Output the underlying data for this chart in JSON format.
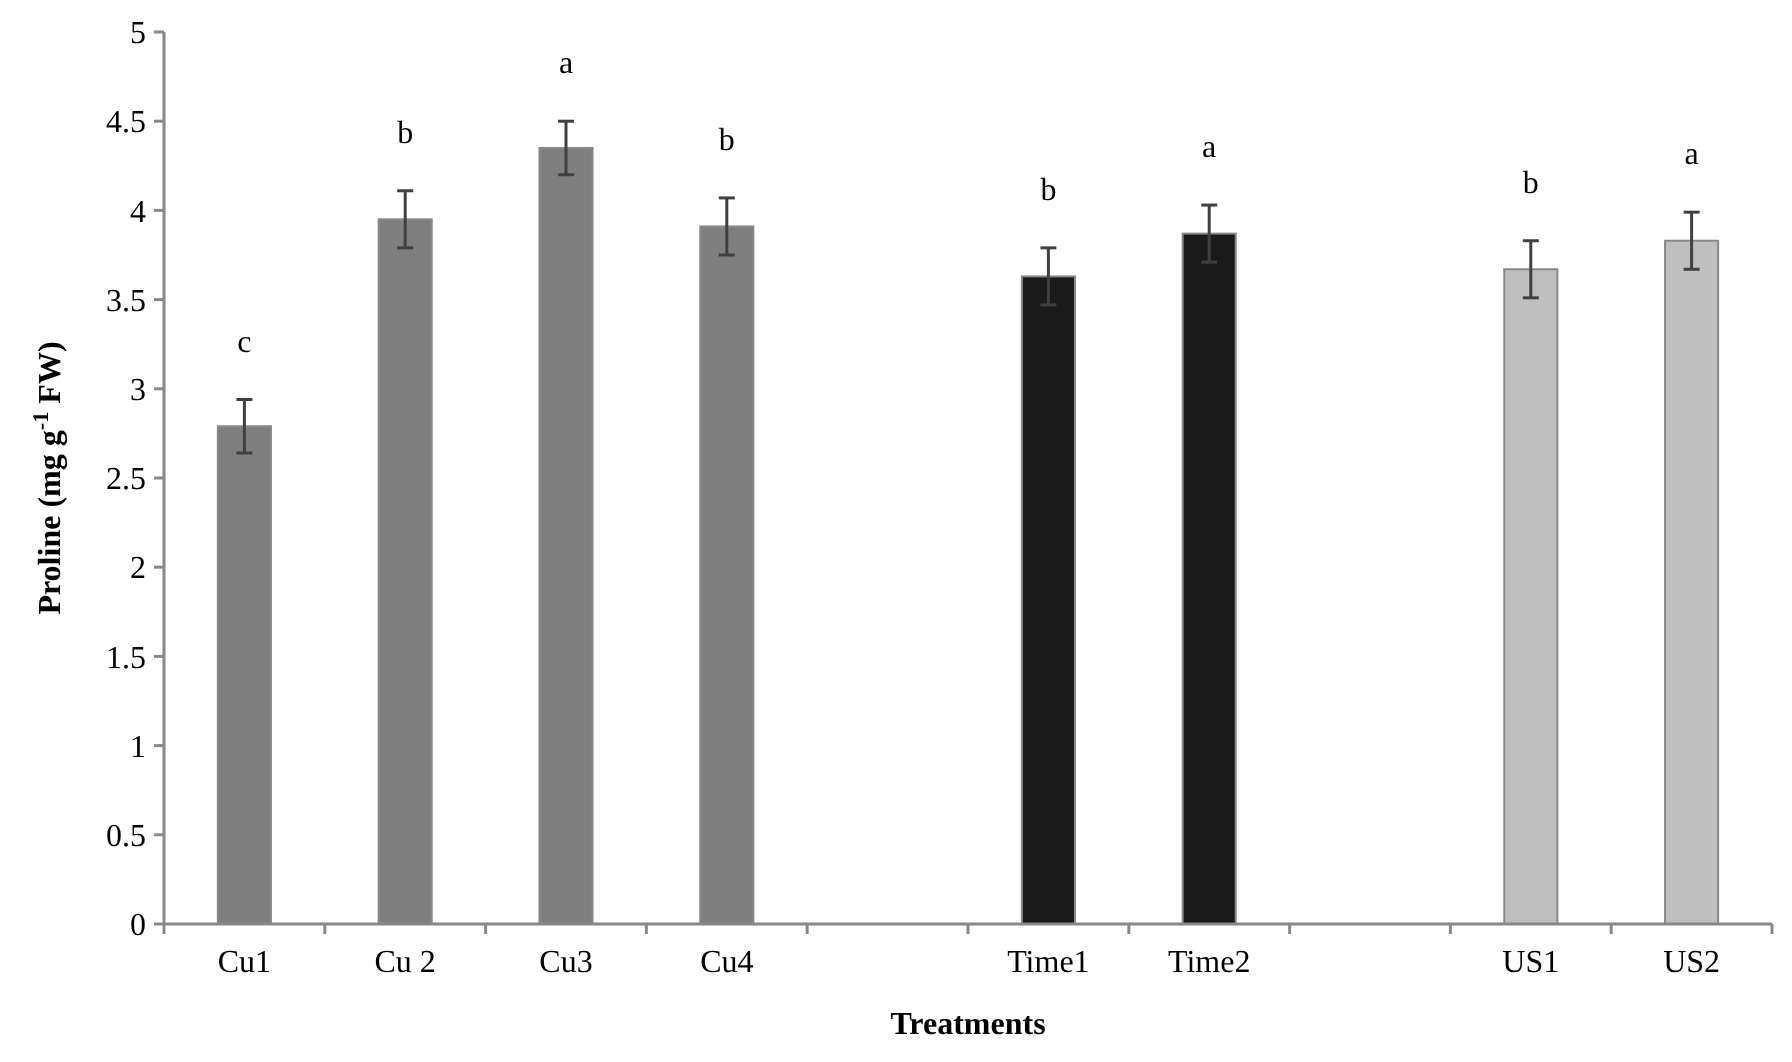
{
  "chart_data": {
    "type": "bar",
    "xlabel": "Treatments",
    "ylabel": "Proline (mg g$^{-1}$ FW)",
    "categories": [
      "Cu1",
      "Cu 2",
      "Cu3",
      "Cu4",
      null,
      "Time1",
      "Time2",
      null,
      "US1",
      "US2"
    ],
    "values": [
      2.79,
      3.95,
      4.35,
      3.91,
      null,
      3.63,
      3.87,
      null,
      3.67,
      3.83
    ],
    "errors": [
      0.15,
      0.16,
      0.15,
      0.16,
      null,
      0.16,
      0.16,
      null,
      0.16,
      0.16
    ],
    "colors": [
      "#7f7f7f",
      "#7f7f7f",
      "#7f7f7f",
      "#7f7f7f",
      null,
      "#1a1a1a",
      "#1a1a1a",
      null,
      "#bfbfbf",
      "#bfbfbf"
    ],
    "ylim": [
      0,
      5
    ],
    "yticks": [
      0,
      0.5,
      1,
      1.5,
      2,
      2.5,
      3,
      3.5,
      4,
      4.5,
      5
    ],
    "grid": false,
    "annotations": [
      "c",
      "b",
      "a",
      "b",
      "b",
      "a",
      "b",
      "a"
    ]
  }
}
